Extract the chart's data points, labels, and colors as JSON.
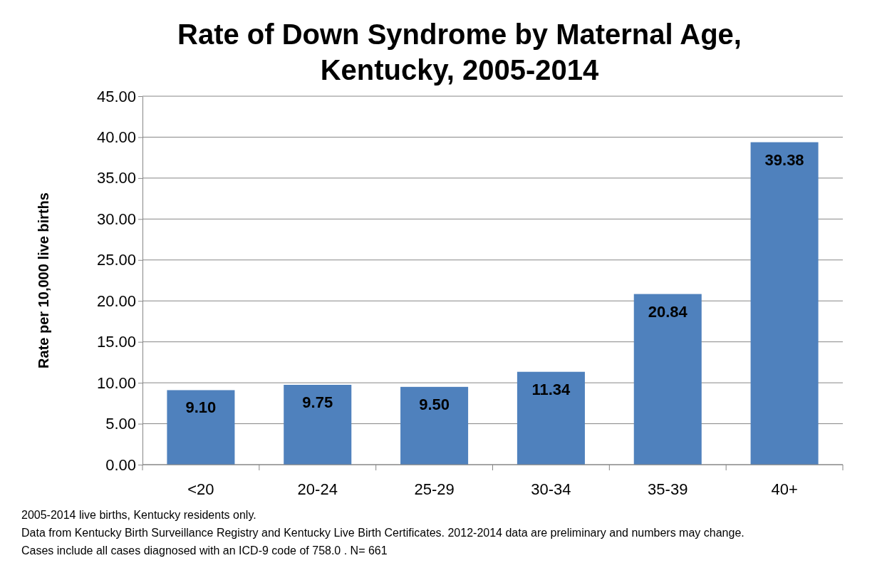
{
  "chart_data": {
    "type": "bar",
    "title": "Rate of Down Syndrome by Maternal Age, Kentucky, 2005-2014",
    "ylabel": "Rate per 10,000 live births",
    "categories": [
      "<20",
      "20-24",
      "25-29",
      "30-34",
      "35-39",
      "40+"
    ],
    "values": [
      9.1,
      9.75,
      9.5,
      11.34,
      20.84,
      39.38
    ],
    "value_labels": [
      "9.10",
      "9.75",
      "9.50",
      "11.34",
      "20.84",
      "39.38"
    ],
    "color": "#4f81bd",
    "ylim": [
      0,
      45
    ],
    "yticks": [
      {
        "value": 0,
        "label": "0.00"
      },
      {
        "value": 5,
        "label": "5.00"
      },
      {
        "value": 10,
        "label": "10.00"
      },
      {
        "value": 15,
        "label": "15.00"
      },
      {
        "value": 20,
        "label": "20.00"
      },
      {
        "value": 25,
        "label": "25.00"
      },
      {
        "value": 30,
        "label": "30.00"
      },
      {
        "value": 35,
        "label": "35.00"
      },
      {
        "value": 40,
        "label": "40.00"
      },
      {
        "value": 45,
        "label": "45.00"
      }
    ],
    "grid": "y",
    "annotations": [
      "2005-2014 live births, Kentucky residents only.",
      "Data from Kentucky Birth Surveillance Registry and Kentucky Live Birth Certificates. 2012-2014 data are preliminary and numbers may change.",
      "Cases include all cases diagnosed with an ICD-9 code of 758.0 . N= 661"
    ]
  }
}
